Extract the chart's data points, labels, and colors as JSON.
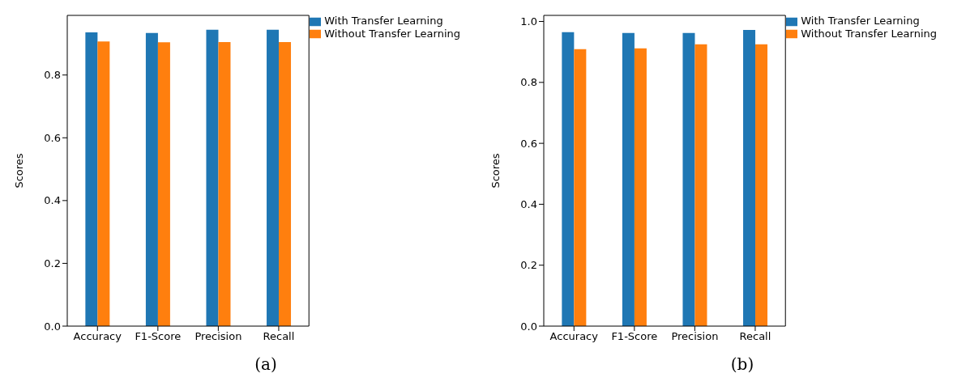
{
  "chart_data": [
    {
      "type": "bar",
      "categories": [
        "Accuracy",
        "F1-Score",
        "Precision",
        "Recall"
      ],
      "ylabel": "Scores",
      "annotations": [
        "(a)"
      ],
      "legend": "top right",
      "ylim": [
        0,
        0.99
      ],
      "yticks": [
        {
          "value": 0,
          "label": "0.0"
        },
        {
          "value": 0.2,
          "label": "0.2"
        },
        {
          "value": 0.4,
          "label": "0.4"
        },
        {
          "value": 0.6,
          "label": "0.6"
        },
        {
          "value": 0.8,
          "label": "0.8"
        }
      ],
      "series": [
        {
          "name": "With Transfer Learning",
          "color": "#1f77b4",
          "values": [
            0.936,
            0.934,
            0.944,
            0.944
          ]
        },
        {
          "name": "Without Transfer Learning",
          "color": "#ff7f0e",
          "values": [
            0.907,
            0.904,
            0.905,
            0.905
          ]
        }
      ]
    },
    {
      "type": "bar",
      "categories": [
        "Accuracy",
        "F1-Score",
        "Precision",
        "Recall"
      ],
      "ylabel": "Scores",
      "annotations": [
        "(b)"
      ],
      "legend": "top right",
      "ylim": [
        0,
        1.02
      ],
      "yticks": [
        {
          "value": 0,
          "label": "0.0"
        },
        {
          "value": 0.2,
          "label": "0.2"
        },
        {
          "value": 0.4,
          "label": "0.4"
        },
        {
          "value": 0.6,
          "label": "0.6"
        },
        {
          "value": 0.8,
          "label": "0.8"
        },
        {
          "value": 1,
          "label": "1.0"
        }
      ],
      "series": [
        {
          "name": "With Transfer Learning",
          "color": "#1f77b4",
          "values": [
            0.965,
            0.962,
            0.962,
            0.972
          ]
        },
        {
          "name": "Without Transfer Learning",
          "color": "#ff7f0e",
          "values": [
            0.909,
            0.912,
            0.925,
            0.925
          ]
        }
      ]
    }
  ]
}
